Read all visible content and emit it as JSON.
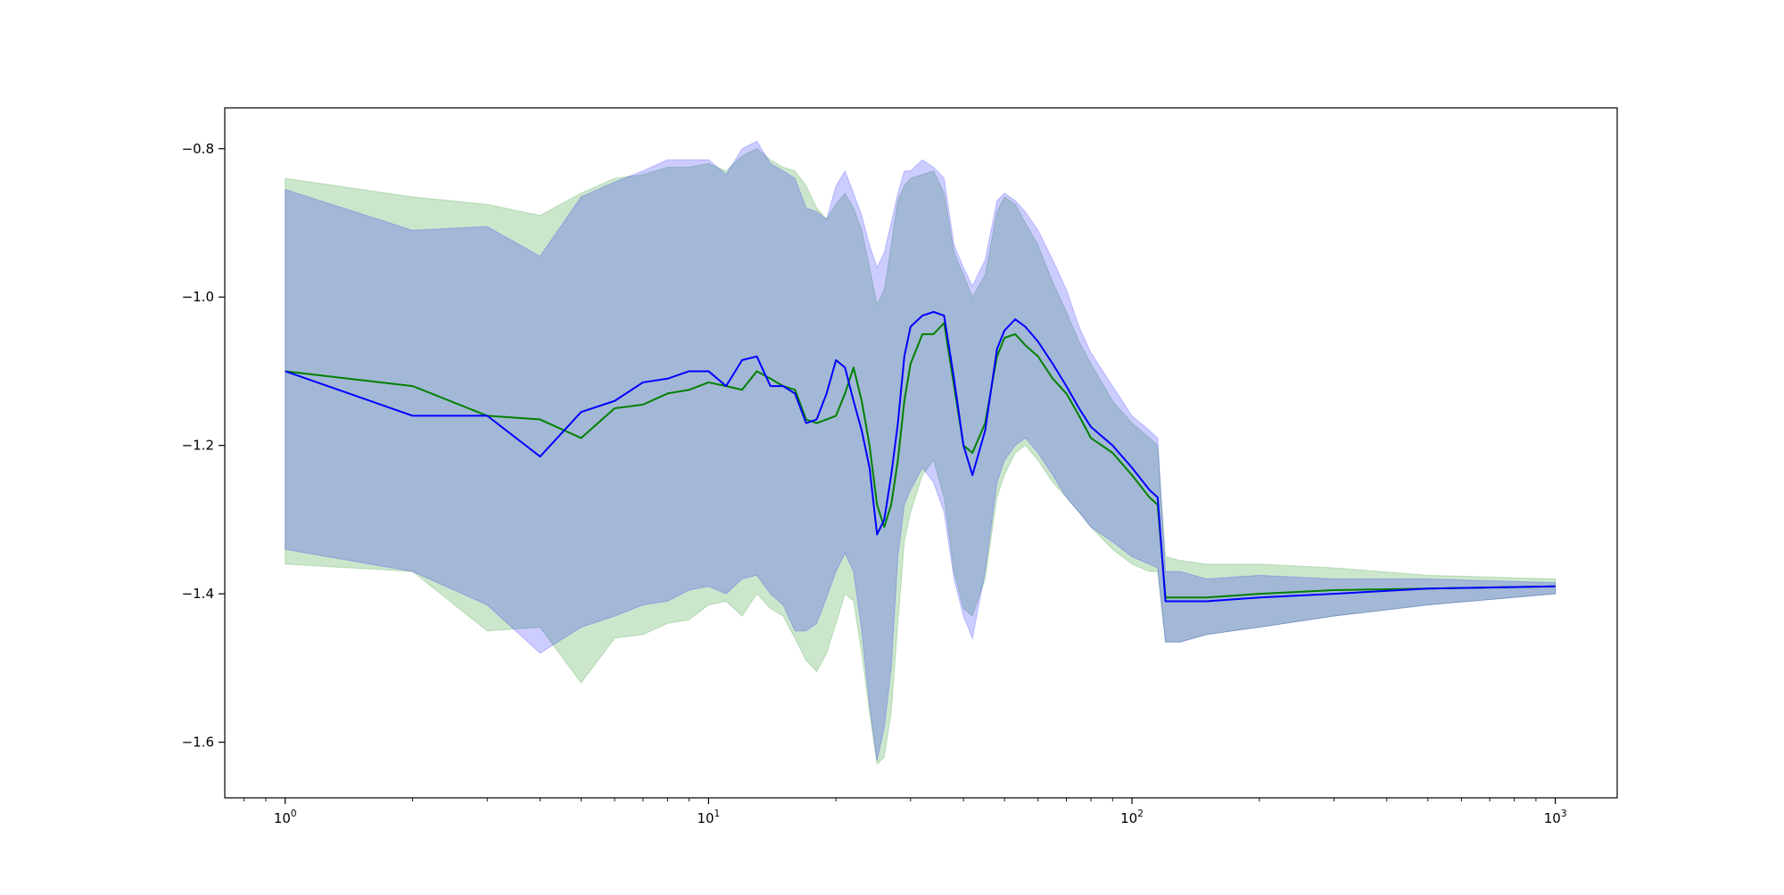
{
  "chart_data": {
    "type": "line",
    "title": "",
    "xlabel": "",
    "ylabel": "",
    "xscale": "log",
    "xlim": [
      0.72,
      1400
    ],
    "ylim": [
      -1.675,
      -0.745
    ],
    "grid": false,
    "legend": "none",
    "x_major_ticks": [
      {
        "value": 1,
        "base": "10",
        "exp": "0"
      },
      {
        "value": 10,
        "base": "10",
        "exp": "1"
      },
      {
        "value": 100,
        "base": "10",
        "exp": "2"
      },
      {
        "value": 1000,
        "base": "10",
        "exp": "3"
      }
    ],
    "y_ticks": [
      {
        "value": -0.8,
        "label": "−0.8"
      },
      {
        "value": -1.0,
        "label": "−1.0"
      },
      {
        "value": -1.2,
        "label": "−1.2"
      },
      {
        "value": -1.4,
        "label": "−1.4"
      },
      {
        "value": -1.6,
        "label": "−1.6"
      }
    ],
    "series": [
      {
        "color": "#008000",
        "band_color": "#008000",
        "band_opacity": 0.2,
        "x": [
          1,
          2,
          3,
          4,
          5,
          6,
          7,
          8,
          9,
          10,
          11,
          12,
          13,
          14,
          15,
          16,
          17,
          18,
          19,
          20,
          21,
          22,
          23,
          24,
          25,
          26,
          27,
          28,
          29,
          30,
          32,
          34,
          36,
          38,
          40,
          42,
          45,
          48,
          50,
          53,
          56,
          60,
          65,
          70,
          75,
          80,
          90,
          100,
          110,
          115,
          120,
          130,
          150,
          200,
          300,
          500,
          1000
        ],
        "mean": [
          -1.1,
          -1.12,
          -1.16,
          -1.165,
          -1.19,
          -1.15,
          -1.145,
          -1.13,
          -1.125,
          -1.115,
          -1.12,
          -1.125,
          -1.1,
          -1.11,
          -1.12,
          -1.125,
          -1.165,
          -1.17,
          -1.165,
          -1.16,
          -1.13,
          -1.095,
          -1.14,
          -1.2,
          -1.28,
          -1.31,
          -1.28,
          -1.22,
          -1.14,
          -1.09,
          -1.05,
          -1.05,
          -1.035,
          -1.12,
          -1.2,
          -1.21,
          -1.17,
          -1.08,
          -1.055,
          -1.05,
          -1.065,
          -1.08,
          -1.11,
          -1.13,
          -1.16,
          -1.19,
          -1.21,
          -1.24,
          -1.27,
          -1.28,
          -1.405,
          -1.405,
          -1.405,
          -1.4,
          -1.395,
          -1.393,
          -1.39
        ],
        "upper": [
          -0.84,
          -0.865,
          -0.875,
          -0.89,
          -0.86,
          -0.84,
          -0.835,
          -0.825,
          -0.825,
          -0.82,
          -0.83,
          -0.81,
          -0.8,
          -0.815,
          -0.825,
          -0.83,
          -0.85,
          -0.88,
          -0.895,
          -0.875,
          -0.86,
          -0.88,
          -0.91,
          -0.96,
          -1.01,
          -0.99,
          -0.93,
          -0.87,
          -0.85,
          -0.84,
          -0.835,
          -0.83,
          -0.86,
          -0.94,
          -0.97,
          -1.0,
          -0.97,
          -0.885,
          -0.865,
          -0.875,
          -0.9,
          -0.93,
          -0.98,
          -1.02,
          -1.06,
          -1.09,
          -1.14,
          -1.17,
          -1.19,
          -1.2,
          -1.35,
          -1.355,
          -1.36,
          -1.36,
          -1.365,
          -1.375,
          -1.38
        ],
        "lower": [
          -1.36,
          -1.37,
          -1.45,
          -1.445,
          -1.52,
          -1.46,
          -1.455,
          -1.44,
          -1.435,
          -1.415,
          -1.41,
          -1.43,
          -1.4,
          -1.42,
          -1.43,
          -1.46,
          -1.49,
          -1.505,
          -1.48,
          -1.44,
          -1.4,
          -1.41,
          -1.48,
          -1.56,
          -1.63,
          -1.62,
          -1.56,
          -1.44,
          -1.33,
          -1.29,
          -1.24,
          -1.22,
          -1.27,
          -1.37,
          -1.42,
          -1.43,
          -1.38,
          -1.27,
          -1.24,
          -1.21,
          -1.2,
          -1.22,
          -1.25,
          -1.27,
          -1.29,
          -1.31,
          -1.34,
          -1.36,
          -1.37,
          -1.37,
          -1.465,
          -1.465,
          -1.455,
          -1.445,
          -1.43,
          -1.415,
          -1.4
        ]
      },
      {
        "color": "#0000ff",
        "band_color": "#0000ff",
        "band_opacity": 0.2,
        "x": [
          1,
          2,
          3,
          4,
          5,
          6,
          7,
          8,
          9,
          10,
          11,
          12,
          13,
          14,
          15,
          16,
          17,
          18,
          19,
          20,
          21,
          22,
          23,
          24,
          25,
          26,
          27,
          28,
          29,
          30,
          32,
          34,
          36,
          38,
          40,
          42,
          45,
          48,
          50,
          53,
          56,
          60,
          65,
          70,
          75,
          80,
          90,
          100,
          110,
          115,
          120,
          130,
          150,
          200,
          300,
          500,
          1000
        ],
        "mean": [
          -1.1,
          -1.16,
          -1.16,
          -1.215,
          -1.155,
          -1.14,
          -1.115,
          -1.11,
          -1.1,
          -1.1,
          -1.12,
          -1.085,
          -1.08,
          -1.12,
          -1.12,
          -1.13,
          -1.17,
          -1.165,
          -1.13,
          -1.085,
          -1.095,
          -1.14,
          -1.18,
          -1.23,
          -1.32,
          -1.3,
          -1.24,
          -1.17,
          -1.08,
          -1.04,
          -1.025,
          -1.02,
          -1.025,
          -1.11,
          -1.2,
          -1.24,
          -1.18,
          -1.07,
          -1.045,
          -1.03,
          -1.04,
          -1.06,
          -1.09,
          -1.12,
          -1.15,
          -1.175,
          -1.2,
          -1.23,
          -1.26,
          -1.27,
          -1.41,
          -1.41,
          -1.41,
          -1.405,
          -1.4,
          -1.393,
          -1.39
        ],
        "upper": [
          -0.855,
          -0.91,
          -0.905,
          -0.945,
          -0.865,
          -0.845,
          -0.83,
          -0.815,
          -0.815,
          -0.815,
          -0.835,
          -0.8,
          -0.79,
          -0.82,
          -0.83,
          -0.84,
          -0.88,
          -0.885,
          -0.895,
          -0.85,
          -0.83,
          -0.86,
          -0.89,
          -0.93,
          -0.96,
          -0.94,
          -0.9,
          -0.86,
          -0.83,
          -0.83,
          -0.815,
          -0.825,
          -0.84,
          -0.93,
          -0.96,
          -0.985,
          -0.95,
          -0.87,
          -0.86,
          -0.87,
          -0.885,
          -0.91,
          -0.95,
          -0.99,
          -1.04,
          -1.075,
          -1.12,
          -1.16,
          -1.18,
          -1.19,
          -1.37,
          -1.37,
          -1.38,
          -1.375,
          -1.38,
          -1.38,
          -1.385
        ],
        "lower": [
          -1.34,
          -1.37,
          -1.415,
          -1.48,
          -1.445,
          -1.43,
          -1.415,
          -1.41,
          -1.395,
          -1.39,
          -1.4,
          -1.38,
          -1.375,
          -1.4,
          -1.415,
          -1.45,
          -1.45,
          -1.44,
          -1.405,
          -1.37,
          -1.345,
          -1.37,
          -1.45,
          -1.55,
          -1.625,
          -1.58,
          -1.5,
          -1.35,
          -1.28,
          -1.26,
          -1.23,
          -1.25,
          -1.29,
          -1.38,
          -1.43,
          -1.46,
          -1.37,
          -1.25,
          -1.22,
          -1.2,
          -1.19,
          -1.21,
          -1.24,
          -1.27,
          -1.29,
          -1.31,
          -1.33,
          -1.35,
          -1.36,
          -1.365,
          -1.465,
          -1.465,
          -1.455,
          -1.445,
          -1.43,
          -1.415,
          -1.4
        ]
      }
    ]
  }
}
